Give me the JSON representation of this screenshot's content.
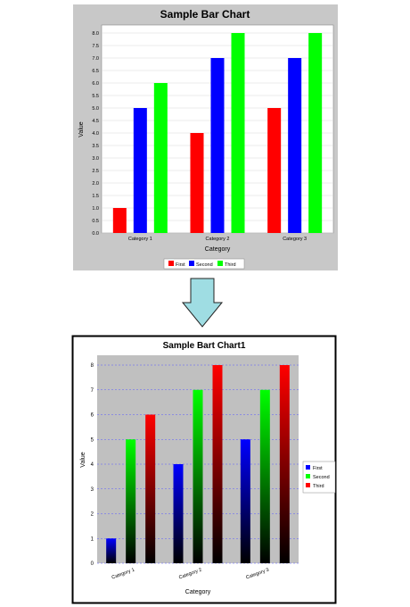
{
  "colors": {
    "chart1_background": "#c8c8c8",
    "chart1_plot": "#ffffff",
    "chart1_series": [
      "#ff0000",
      "#0000ff",
      "#00ff00"
    ],
    "arrow_fill": "#9fdde3",
    "arrow_stroke": "#222222",
    "chart2_plot": "#c0c0c0",
    "chart2_grid": "#5a5aff",
    "chart2_series": [
      "#0000ff",
      "#00ff00",
      "#ff0000"
    ]
  },
  "chart_data": [
    {
      "type": "bar",
      "title": "Sample Bar Chart",
      "xlabel": "Category",
      "ylabel": "Value",
      "categories": [
        "Category 1",
        "Category 2",
        "Category 3"
      ],
      "series": [
        {
          "name": "First",
          "values": [
            1,
            4,
            5
          ]
        },
        {
          "name": "Second",
          "values": [
            5,
            7,
            7
          ]
        },
        {
          "name": "Third",
          "values": [
            6,
            8,
            8
          ]
        }
      ],
      "ylim": [
        0,
        8
      ],
      "yticks": [
        "0.0",
        "0.5",
        "1.0",
        "1.5",
        "2.0",
        "2.5",
        "3.0",
        "3.5",
        "4.0",
        "4.5",
        "5.0",
        "5.5",
        "6.0",
        "6.5",
        "7.0",
        "7.5",
        "8.0"
      ],
      "legend": "bottom",
      "grid": true
    },
    {
      "type": "bar",
      "title": "Sample Bart Chart1",
      "xlabel": "Category",
      "ylabel": "Value",
      "categories": [
        "Category 1",
        "Category 2",
        "Category 3"
      ],
      "series": [
        {
          "name": "First",
          "values": [
            1,
            4,
            5
          ]
        },
        {
          "name": "Second",
          "values": [
            5,
            7,
            7
          ]
        },
        {
          "name": "Third",
          "values": [
            6,
            8,
            8
          ]
        }
      ],
      "ylim": [
        0,
        8
      ],
      "yticks": [
        "0",
        "1",
        "2",
        "3",
        "4",
        "5",
        "6",
        "7",
        "8"
      ],
      "legend": "right",
      "grid": true,
      "gradient": "vertical, series color at top fading to black at bottom"
    }
  ]
}
